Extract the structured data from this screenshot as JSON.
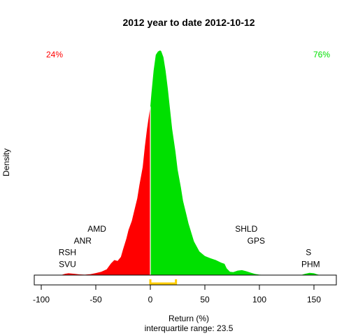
{
  "chart_data": {
    "type": "area",
    "title": "2012  year to date 2012-10-12",
    "xlabel": "Return (%)",
    "ylabel": "Density",
    "subtitle": "interquartile range: 23.5",
    "xlim": [
      -100,
      170
    ],
    "xticks": [
      -100,
      -50,
      0,
      50,
      100,
      150
    ],
    "pct_negative": "24%",
    "pct_positive": "76%",
    "negative_color": "#ff0000",
    "positive_color": "#00e000",
    "iqr_color": "#ffcc00",
    "iqr": [
      0,
      23.5
    ],
    "density": {
      "x": [
        -82,
        -78,
        -75,
        -70,
        -65,
        -60,
        -55,
        -50,
        -45,
        -40,
        -36,
        -33,
        -30,
        -27,
        -25,
        -22,
        -20,
        -17,
        -15,
        -12,
        -10,
        -7,
        -5,
        -3,
        -1,
        0,
        1,
        3,
        5,
        7,
        9,
        10,
        12,
        14,
        16,
        18,
        20,
        23,
        25,
        28,
        30,
        33,
        35,
        40,
        45,
        50,
        55,
        60,
        65,
        68,
        70,
        73,
        76,
        80,
        84,
        88,
        92,
        96,
        100,
        105,
        110,
        120,
        130,
        138,
        142,
        146,
        150,
        153,
        156
      ],
      "y": [
        0,
        0.006,
        0.008,
        0.006,
        0.003,
        0.002,
        0.004,
        0.009,
        0.015,
        0.026,
        0.052,
        0.067,
        0.063,
        0.081,
        0.115,
        0.162,
        0.201,
        0.241,
        0.281,
        0.341,
        0.401,
        0.481,
        0.573,
        0.652,
        0.717,
        0.75,
        0.81,
        0.91,
        0.98,
        0.995,
        1.0,
        0.996,
        0.97,
        0.91,
        0.83,
        0.74,
        0.65,
        0.55,
        0.47,
        0.39,
        0.33,
        0.27,
        0.23,
        0.15,
        0.105,
        0.085,
        0.075,
        0.067,
        0.055,
        0.05,
        0.03,
        0.015,
        0.013,
        0.02,
        0.022,
        0.017,
        0.011,
        0.005,
        0.002,
        0.001,
        0,
        0,
        0,
        0,
        0.006,
        0.01,
        0.008,
        0.003,
        0
      ]
    },
    "annotations": [
      {
        "label": "AMD",
        "x": -49,
        "y": 0.205
      },
      {
        "label": "ANR",
        "x": -62,
        "y": 0.153
      },
      {
        "label": "RSH",
        "x": -76,
        "y": 0.101
      },
      {
        "label": "SVU",
        "x": -76,
        "y": 0.049
      },
      {
        "label": "SHLD",
        "x": 88,
        "y": 0.205
      },
      {
        "label": "GPS",
        "x": 97,
        "y": 0.153
      },
      {
        "label": "S",
        "x": 145,
        "y": 0.101
      },
      {
        "label": "PHM",
        "x": 147,
        "y": 0.049
      }
    ]
  }
}
